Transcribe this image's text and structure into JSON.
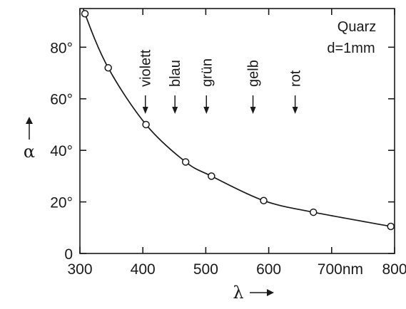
{
  "chart_data": {
    "type": "line",
    "x_ticks": [
      300,
      400,
      500,
      600,
      700,
      800
    ],
    "x_tick_labels": [
      "300",
      "400",
      "500",
      "600",
      "700nm",
      "800"
    ],
    "y_ticks": [
      0,
      20,
      40,
      60,
      80
    ],
    "y_tick_labels": [
      "0",
      "20°",
      "40°",
      "60°",
      "80°"
    ],
    "xlabel": "λ",
    "ylabel": "α",
    "xlim": [
      300,
      800
    ],
    "ylim": [
      0,
      95
    ],
    "grid": false,
    "series": [
      {
        "points": [
          {
            "x": 308,
            "y": 93
          },
          {
            "x": 345,
            "y": 72
          },
          {
            "x": 405,
            "y": 50
          },
          {
            "x": 468,
            "y": 35.5
          },
          {
            "x": 509,
            "y": 30
          },
          {
            "x": 592,
            "y": 20.5
          },
          {
            "x": 671,
            "y": 16
          },
          {
            "x": 794,
            "y": 10.5
          }
        ]
      }
    ],
    "color_labels": [
      {
        "text": "violett",
        "x": 404
      },
      {
        "text": "blau",
        "x": 451
      },
      {
        "text": "grün",
        "x": 501
      },
      {
        "text": "gelb",
        "x": 575
      },
      {
        "text": "rot",
        "x": 642
      }
    ],
    "annotation": {
      "line1": "Quarz",
      "line2": "d=1mm"
    }
  },
  "style": {
    "ink": "#1a1a1a"
  }
}
